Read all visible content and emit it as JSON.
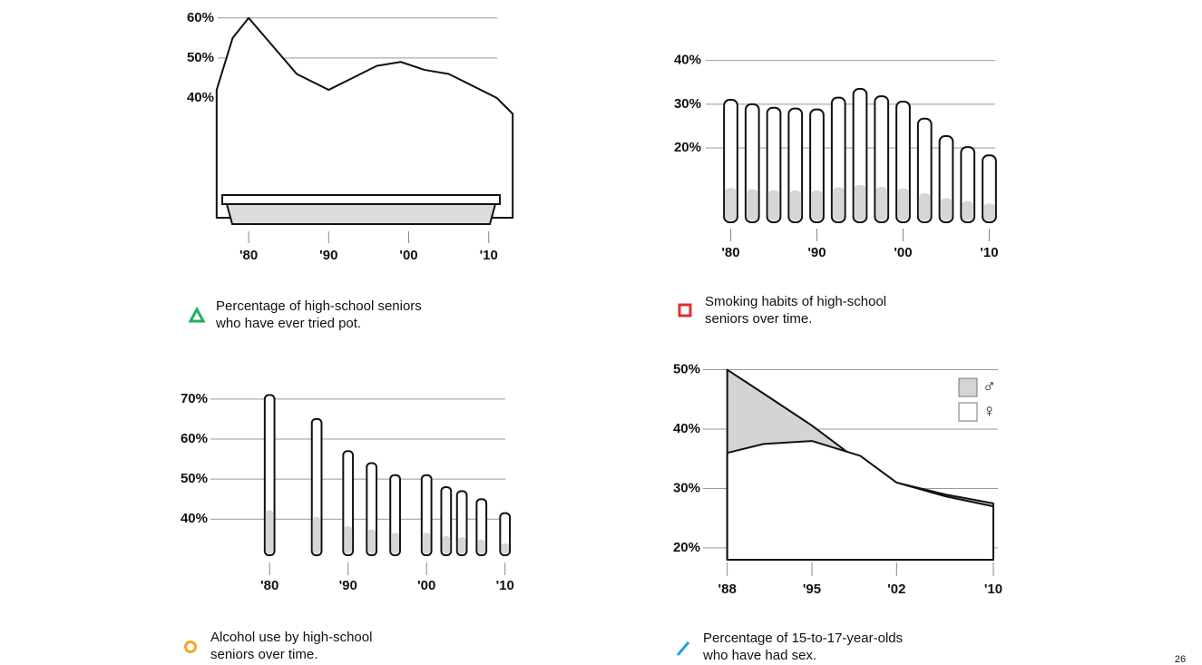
{
  "chart_data": [
    {
      "type": "area",
      "caption": [
        "Percentage of high-school seniors",
        "who have ever tried pot."
      ],
      "icon_color": "#1fb25a",
      "x": [
        1976,
        1978,
        1980,
        1983,
        1986,
        1990,
        1993,
        1996,
        1999,
        2002,
        2005,
        2008,
        2011,
        2013
      ],
      "values": [
        42,
        55,
        60,
        53,
        46,
        42,
        45,
        48,
        49,
        47,
        46,
        43,
        40,
        36
      ],
      "xlim": [
        1975,
        2014
      ],
      "ylim": [
        10,
        62
      ],
      "xticks": [
        {
          "value": 1980,
          "label": "'80"
        },
        {
          "value": 1990,
          "label": "'90"
        },
        {
          "value": 2000,
          "label": "'00"
        },
        {
          "value": 2010,
          "label": "'10"
        }
      ],
      "yticks": [
        {
          "value": 40,
          "label": "40%"
        },
        {
          "value": 50,
          "label": "50%"
        },
        {
          "value": 60,
          "label": "60%"
        }
      ],
      "grid": true
    },
    {
      "type": "bar",
      "caption": [
        "Smoking habits of high-school",
        "seniors over time."
      ],
      "icon_color": "#e0312f",
      "x": [
        1980,
        1982.5,
        1985,
        1987.5,
        1990,
        1992.5,
        1995,
        1997.5,
        2000,
        2002.5,
        2005,
        2007.5,
        2010
      ],
      "values": [
        31,
        30,
        29.2,
        29,
        28.8,
        31.5,
        33.5,
        31.8,
        30.6,
        26.7,
        22.7,
        20.2,
        18.3
      ],
      "xlim": [
        1977,
        2011
      ],
      "ylim": [
        3,
        42
      ],
      "xticks": [
        {
          "value": 1980,
          "label": "'80"
        },
        {
          "value": 1990,
          "label": "'90"
        },
        {
          "value": 2000,
          "label": "'00"
        },
        {
          "value": 2010,
          "label": "'10"
        }
      ],
      "yticks": [
        {
          "value": 20,
          "label": "20%"
        },
        {
          "value": 30,
          "label": "30%"
        },
        {
          "value": 40,
          "label": "40%"
        }
      ],
      "grid": true
    },
    {
      "type": "bar",
      "caption": [
        "Alcohol use by high-school",
        "seniors over time."
      ],
      "icon_color": "#f5a623",
      "x": [
        1980,
        1986,
        1990,
        1993,
        1996,
        2000,
        2002.5,
        2004.5,
        2007,
        2010
      ],
      "values": [
        71,
        65,
        57,
        54,
        51,
        51,
        48,
        47,
        45,
        41.5
      ],
      "xlim": [
        1972,
        2012
      ],
      "ylim": [
        31,
        72
      ],
      "xticks": [
        {
          "value": 1980,
          "label": "'80"
        },
        {
          "value": 1990,
          "label": "'90"
        },
        {
          "value": 2000,
          "label": "'00"
        },
        {
          "value": 2010,
          "label": "'10"
        }
      ],
      "yticks": [
        {
          "value": 40,
          "label": "40%"
        },
        {
          "value": 50,
          "label": "50%"
        },
        {
          "value": 60,
          "label": "60%"
        },
        {
          "value": 70,
          "label": "70%"
        }
      ],
      "grid": true
    },
    {
      "type": "area",
      "caption": [
        "Percentage of 15-to-17-year-olds",
        "who have had sex."
      ],
      "icon_color": "#1aa3e8",
      "x": [
        1988,
        1991,
        1995,
        1999,
        2002,
        2006,
        2010
      ],
      "series": [
        {
          "name": "♂",
          "color": "#d4d4d4",
          "values": [
            50,
            46,
            40.6,
            34.5,
            31,
            29,
            27.5
          ]
        },
        {
          "name": "♀",
          "color": "#ffffff",
          "values": [
            36,
            37.5,
            38,
            35.5,
            31,
            28.7,
            27
          ]
        }
      ],
      "xlim": [
        1986,
        2010
      ],
      "ylim": [
        18,
        51
      ],
      "xticks": [
        {
          "value": 1988,
          "label": "'88"
        },
        {
          "value": 1995,
          "label": "'95"
        },
        {
          "value": 2002,
          "label": "'02"
        },
        {
          "value": 2010,
          "label": "'10"
        }
      ],
      "yticks": [
        {
          "value": 20,
          "label": "20%"
        },
        {
          "value": 30,
          "label": "30%"
        },
        {
          "value": 40,
          "label": "40%"
        },
        {
          "value": 50,
          "label": "50%"
        }
      ],
      "grid": true,
      "legend": "upper right"
    }
  ],
  "page_number": "26"
}
